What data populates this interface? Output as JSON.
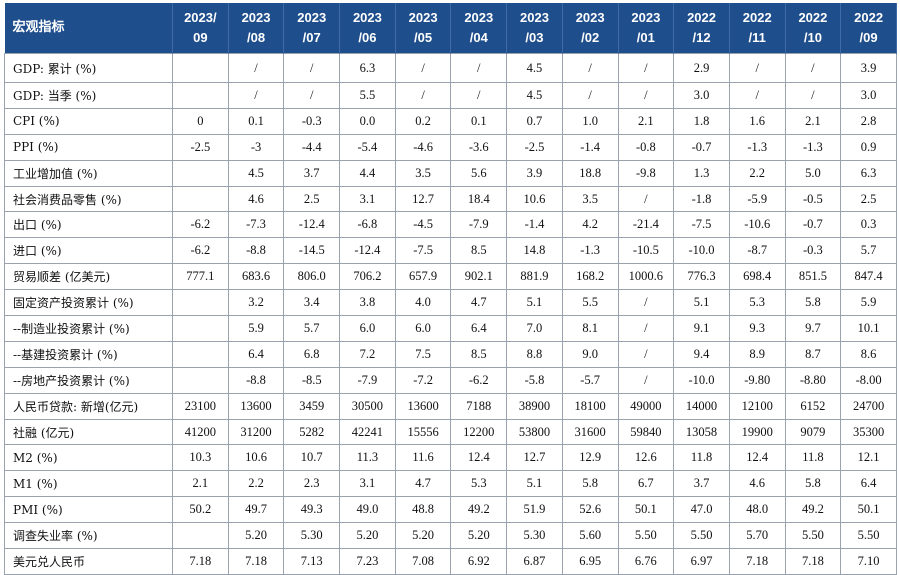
{
  "header": {
    "corner": "宏观指标",
    "months": [
      [
        "2023/",
        "09"
      ],
      [
        "2023",
        "/08"
      ],
      [
        "2023",
        "/07"
      ],
      [
        "2023",
        "/06"
      ],
      [
        "2023",
        "/05"
      ],
      [
        "2023",
        "/04"
      ],
      [
        "2023",
        "/03"
      ],
      [
        "2023",
        "/02"
      ],
      [
        "2023",
        "/01"
      ],
      [
        "2022",
        "/12"
      ],
      [
        "2022",
        "/11"
      ],
      [
        "2022",
        "/10"
      ],
      [
        "2022",
        "/09"
      ]
    ]
  },
  "rows": [
    {
      "label": "GDP: 累计 (%)",
      "values": [
        "",
        "/",
        "/",
        "6.3",
        "/",
        "/",
        "4.5",
        "/",
        "/",
        "2.9",
        "/",
        "/",
        "3.9"
      ]
    },
    {
      "label": "GDP: 当季 (%)",
      "values": [
        "",
        "/",
        "/",
        "5.5",
        "/",
        "/",
        "4.5",
        "/",
        "/",
        "3.0",
        "/",
        "/",
        "3.0"
      ]
    },
    {
      "label": "CPI (%)",
      "values": [
        "0",
        "0.1",
        "-0.3",
        "0.0",
        "0.2",
        "0.1",
        "0.7",
        "1.0",
        "2.1",
        "1.8",
        "1.6",
        "2.1",
        "2.8"
      ]
    },
    {
      "label": "PPI (%)",
      "values": [
        "-2.5",
        "-3",
        "-4.4",
        "-5.4",
        "-4.6",
        "-3.6",
        "-2.5",
        "-1.4",
        "-0.8",
        "-0.7",
        "-1.3",
        "-1.3",
        "0.9"
      ]
    },
    {
      "label": "工业增加值 (%)",
      "values": [
        "",
        "4.5",
        "3.7",
        "4.4",
        "3.5",
        "5.6",
        "3.9",
        "18.8",
        "-9.8",
        "1.3",
        "2.2",
        "5.0",
        "6.3"
      ]
    },
    {
      "label": "社会消费品零售 (%)",
      "values": [
        "",
        "4.6",
        "2.5",
        "3.1",
        "12.7",
        "18.4",
        "10.6",
        "3.5",
        "/",
        "-1.8",
        "-5.9",
        "-0.5",
        "2.5"
      ]
    },
    {
      "label": "出口 (%)",
      "values": [
        "-6.2",
        "-7.3",
        "-12.4",
        "-6.8",
        "-4.5",
        "-7.9",
        "-1.4",
        "4.2",
        "-21.4",
        "-7.5",
        "-10.6",
        "-0.7",
        "0.3"
      ]
    },
    {
      "label": "进口 (%)",
      "values": [
        "-6.2",
        "-8.8",
        "-14.5",
        "-12.4",
        "-7.5",
        "8.5",
        "14.8",
        "-1.3",
        "-10.5",
        "-10.0",
        "-8.7",
        "-0.3",
        "5.7"
      ]
    },
    {
      "label": "贸易顺差 (亿美元)",
      "values": [
        "777.1",
        "683.6",
        "806.0",
        "706.2",
        "657.9",
        "902.1",
        "881.9",
        "168.2",
        "1000.6",
        "776.3",
        "698.4",
        "851.5",
        "847.4"
      ]
    },
    {
      "label": "固定资产投资累计 (%)",
      "values": [
        "",
        "3.2",
        "3.4",
        "3.8",
        "4.0",
        "4.7",
        "5.1",
        "5.5",
        "/",
        "5.1",
        "5.3",
        "5.8",
        "5.9"
      ]
    },
    {
      "label": "--制造业投资累计 (%)",
      "values": [
        "",
        "5.9",
        "5.7",
        "6.0",
        "6.0",
        "6.4",
        "7.0",
        "8.1",
        "/",
        "9.1",
        "9.3",
        "9.7",
        "10.1"
      ]
    },
    {
      "label": "--基建投资累计 (%)",
      "values": [
        "",
        "6.4",
        "6.8",
        "7.2",
        "7.5",
        "8.5",
        "8.8",
        "9.0",
        "/",
        "9.4",
        "8.9",
        "8.7",
        "8.6"
      ]
    },
    {
      "label": "--房地产投资累计 (%)",
      "values": [
        "",
        "-8.8",
        "-8.5",
        "-7.9",
        "-7.2",
        "-6.2",
        "-5.8",
        "-5.7",
        "/",
        "-10.0",
        "-9.80",
        "-8.80",
        "-8.00"
      ]
    },
    {
      "label": "人民币贷款: 新增(亿元)",
      "values": [
        "23100",
        "13600",
        "3459",
        "30500",
        "13600",
        "7188",
        "38900",
        "18100",
        "49000",
        "14000",
        "12100",
        "6152",
        "24700"
      ]
    },
    {
      "label": "社融 (亿元)",
      "values": [
        "41200",
        "31200",
        "5282",
        "42241",
        "15556",
        "12200",
        "53800",
        "31600",
        "59840",
        "13058",
        "19900",
        "9079",
        "35300"
      ]
    },
    {
      "label": "M2 (%)",
      "values": [
        "10.3",
        "10.6",
        "10.7",
        "11.3",
        "11.6",
        "12.4",
        "12.7",
        "12.9",
        "12.6",
        "11.8",
        "12.4",
        "11.8",
        "12.1"
      ]
    },
    {
      "label": "M1 (%)",
      "values": [
        "2.1",
        "2.2",
        "2.3",
        "3.1",
        "4.7",
        "5.3",
        "5.1",
        "5.8",
        "6.7",
        "3.7",
        "4.6",
        "5.8",
        "6.4"
      ]
    },
    {
      "label": "PMI (%)",
      "values": [
        "50.2",
        "49.7",
        "49.3",
        "49.0",
        "48.8",
        "49.2",
        "51.9",
        "52.6",
        "50.1",
        "47.0",
        "48.0",
        "49.2",
        "50.1"
      ]
    },
    {
      "label": "调查失业率 (%)",
      "values": [
        "",
        "5.20",
        "5.30",
        "5.20",
        "5.20",
        "5.20",
        "5.30",
        "5.60",
        "5.50",
        "5.50",
        "5.70",
        "5.50",
        "5.50"
      ]
    },
    {
      "label": "美元兑人民币",
      "values": [
        "7.18",
        "7.18",
        "7.13",
        "7.23",
        "7.08",
        "6.92",
        "6.87",
        "6.95",
        "6.76",
        "6.97",
        "7.18",
        "7.18",
        "7.10"
      ]
    }
  ]
}
